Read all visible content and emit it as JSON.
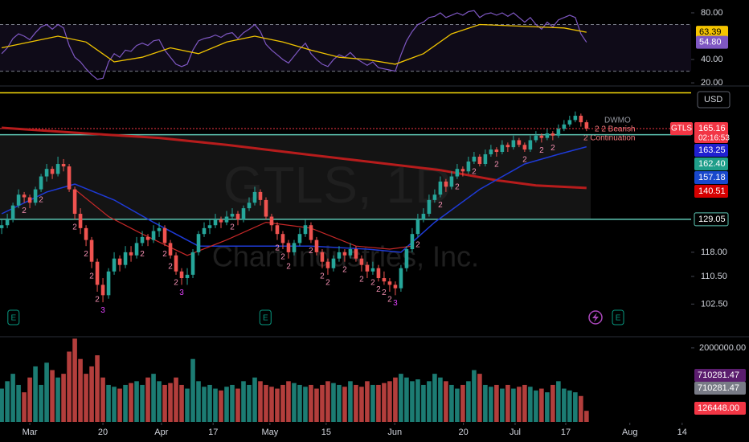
{
  "chart_data": {
    "type": "candlestick",
    "symbol_watermark": "GTLS, 1D",
    "company_watermark": "Chart Industries, Inc.",
    "currency": "USD",
    "symbol_tag": "GTLS",
    "countdown": "02:16:53",
    "annotations": [
      "DWMO",
      "2 2 Bearish",
      "2 Continuation"
    ],
    "up_color": "#26a69a",
    "down_color": "#ef5350",
    "xlim": [
      -5.3,
      117.6
    ],
    "xticks": [
      {
        "value": 0,
        "label": "Mar"
      },
      {
        "value": 13,
        "label": "20"
      },
      {
        "value": 23.4,
        "label": "Apr"
      },
      {
        "value": 32.6,
        "label": "17"
      },
      {
        "value": 42.7,
        "label": "May"
      },
      {
        "value": 52.7,
        "label": "15"
      },
      {
        "value": 64.9,
        "label": "Jun"
      },
      {
        "value": 77.1,
        "label": "20"
      },
      {
        "value": 86.3,
        "label": "Jul"
      },
      {
        "value": 95.3,
        "label": "17"
      },
      {
        "value": 106.7,
        "label": "Aug"
      },
      {
        "value": 116,
        "label": "14"
      }
    ],
    "x": [
      -5,
      -4,
      -3,
      -2,
      -1,
      0,
      1,
      2,
      3,
      4,
      5,
      6,
      7,
      8,
      9,
      10,
      11,
      12,
      13,
      14,
      15,
      16,
      17,
      18,
      19,
      20,
      21,
      22,
      23,
      24,
      25,
      26,
      27,
      28,
      29,
      30,
      31,
      32,
      33,
      34,
      35,
      36,
      37,
      38,
      39,
      40,
      41,
      42,
      43,
      44,
      45,
      46,
      47,
      48,
      49,
      50,
      51,
      52,
      53,
      54,
      55,
      56,
      57,
      58,
      59,
      60,
      61,
      62,
      63,
      64,
      65,
      66,
      67,
      68,
      69,
      70,
      71,
      72,
      73,
      74,
      75,
      76,
      77,
      78,
      79,
      80,
      81,
      82,
      83,
      84,
      85,
      86,
      87,
      88,
      89,
      90,
      91,
      92,
      93,
      94,
      95,
      96,
      97,
      98,
      99
    ],
    "candles": [
      [
        126,
        129,
        124,
        127
      ],
      [
        127,
        131,
        126,
        129
      ],
      [
        129,
        135,
        128,
        134
      ],
      [
        134,
        140,
        133,
        138
      ],
      [
        138,
        139,
        135,
        137
      ],
      [
        137,
        138,
        133,
        135
      ],
      [
        135,
        141,
        134,
        140
      ],
      [
        140,
        146,
        139,
        145
      ],
      [
        145,
        150,
        143,
        148
      ],
      [
        148,
        149,
        144,
        146
      ],
      [
        146,
        153,
        145,
        150
      ],
      [
        150,
        152,
        147,
        149
      ],
      [
        149,
        150,
        139,
        140
      ],
      [
        140,
        141,
        129,
        131
      ],
      [
        131,
        133,
        124,
        126
      ],
      [
        126,
        127,
        120,
        122
      ],
      [
        122,
        123,
        113,
        115
      ],
      [
        115,
        116,
        106,
        108
      ],
      [
        108,
        110,
        103,
        105
      ],
      [
        105,
        113,
        104,
        112
      ],
      [
        112,
        118,
        111,
        116
      ],
      [
        116,
        117,
        112,
        114
      ],
      [
        114,
        120,
        113,
        118
      ],
      [
        118,
        120,
        115,
        117
      ],
      [
        117,
        123,
        116,
        121
      ],
      [
        121,
        125,
        120,
        123
      ],
      [
        123,
        124,
        120,
        122
      ],
      [
        122,
        127,
        121,
        125
      ],
      [
        125,
        128,
        123,
        126
      ],
      [
        126,
        127,
        120,
        121
      ],
      [
        121,
        122,
        116,
        117
      ],
      [
        117,
        118,
        111,
        112
      ],
      [
        112,
        113,
        108,
        110
      ],
      [
        110,
        113,
        108,
        111
      ],
      [
        111,
        119,
        110,
        118
      ],
      [
        118,
        125,
        117,
        124
      ],
      [
        124,
        128,
        123,
        126
      ],
      [
        126,
        129,
        124,
        127
      ],
      [
        127,
        131,
        126,
        129
      ],
      [
        129,
        130,
        126,
        128
      ],
      [
        128,
        132,
        127,
        130
      ],
      [
        130,
        133,
        129,
        131
      ],
      [
        131,
        132,
        127,
        129
      ],
      [
        129,
        134,
        128,
        133
      ],
      [
        133,
        137,
        132,
        135
      ],
      [
        135,
        141,
        134,
        139
      ],
      [
        139,
        140,
        134,
        136
      ],
      [
        136,
        137,
        129,
        130
      ],
      [
        130,
        131,
        125,
        127
      ],
      [
        127,
        128,
        122,
        124
      ],
      [
        124,
        125,
        119,
        121
      ],
      [
        121,
        122,
        116,
        118
      ],
      [
        118,
        122,
        117,
        121
      ],
      [
        121,
        126,
        120,
        124
      ],
      [
        124,
        129,
        123,
        127
      ],
      [
        127,
        128,
        121,
        122
      ],
      [
        122,
        123,
        117,
        118
      ],
      [
        118,
        119,
        113,
        115
      ],
      [
        115,
        116,
        111,
        113
      ],
      [
        113,
        117,
        112,
        116
      ],
      [
        116,
        120,
        115,
        118
      ],
      [
        118,
        119,
        115,
        117
      ],
      [
        117,
        121,
        116,
        119
      ],
      [
        119,
        120,
        115,
        116
      ],
      [
        116,
        117,
        112,
        114
      ],
      [
        114,
        115,
        110,
        112
      ],
      [
        112,
        115,
        111,
        113
      ],
      [
        113,
        114,
        109,
        110
      ],
      [
        110,
        112,
        108,
        109
      ],
      [
        109,
        110,
        106,
        108
      ],
      [
        108,
        109,
        105,
        107
      ],
      [
        107,
        114,
        106,
        113
      ],
      [
        113,
        120,
        112,
        119
      ],
      [
        119,
        126,
        118,
        124
      ],
      [
        124,
        131,
        123,
        129
      ],
      [
        129,
        133,
        128,
        131
      ],
      [
        131,
        138,
        130,
        136
      ],
      [
        136,
        140,
        135,
        138
      ],
      [
        138,
        145,
        137,
        143
      ],
      [
        143,
        144,
        139,
        141
      ],
      [
        141,
        147,
        140,
        145
      ],
      [
        145,
        150,
        144,
        148
      ],
      [
        148,
        149,
        145,
        147
      ],
      [
        147,
        153,
        146,
        151
      ],
      [
        151,
        155,
        150,
        153
      ],
      [
        153,
        154,
        149,
        150
      ],
      [
        150,
        156,
        149,
        154
      ],
      [
        154,
        158,
        153,
        156
      ],
      [
        156,
        157,
        153,
        155
      ],
      [
        155,
        160,
        154,
        158
      ],
      [
        158,
        159,
        155,
        157
      ],
      [
        157,
        162,
        156,
        160
      ],
      [
        160,
        161,
        157,
        158
      ],
      [
        158,
        159,
        155,
        156
      ],
      [
        156,
        162,
        155,
        160
      ],
      [
        160,
        164,
        159,
        162
      ],
      [
        162,
        163,
        159,
        161
      ],
      [
        161,
        165,
        160,
        163
      ],
      [
        163,
        164,
        160,
        162
      ],
      [
        162,
        167,
        161,
        165
      ],
      [
        165,
        169,
        164,
        167
      ],
      [
        167,
        171,
        166,
        169
      ],
      [
        169,
        173,
        168,
        171
      ],
      [
        171,
        172,
        166,
        168
      ],
      [
        168,
        169,
        164,
        165.16
      ]
    ],
    "volume": [
      900000,
      1100000,
      1300000,
      1000000,
      800000,
      1200000,
      1500000,
      1000000,
      1600000,
      1400000,
      1200000,
      1300000,
      1900000,
      2250000,
      1700000,
      1300000,
      1500000,
      1800000,
      1200000,
      1000000,
      950000,
      900000,
      1000000,
      1050000,
      1100000,
      1000000,
      1200000,
      1300000,
      1100000,
      1000000,
      1050000,
      1200000,
      1000000,
      900000,
      1700000,
      1100000,
      950000,
      1000000,
      900000,
      850000,
      950000,
      1000000,
      900000,
      1100000,
      1000000,
      1200000,
      1100000,
      1000000,
      950000,
      900000,
      1000000,
      1100000,
      1050000,
      1000000,
      950000,
      1000000,
      900000,
      1000000,
      1100000,
      1050000,
      1000000,
      950000,
      1100000,
      1000000,
      950000,
      1100000,
      1000000,
      1000000,
      1050000,
      1100000,
      1200000,
      1300000,
      1200000,
      1100000,
      1150000,
      1000000,
      1100000,
      1300000,
      1200000,
      1100000,
      1000000,
      900000,
      1000000,
      1100000,
      1400000,
      1300000,
      1000000,
      950000,
      1000000,
      900000,
      1000000,
      900000,
      950000,
      1000000,
      950000,
      850000,
      900000,
      800000,
      1000000,
      1100000,
      900000,
      850000,
      800000,
      700000,
      300000
    ],
    "log_scale": true,
    "ylim": [
      94,
      185
    ],
    "yticks": [
      {
        "value": 102.5,
        "label": "102.50"
      },
      {
        "value": 110.5,
        "label": "110.50"
      },
      {
        "value": 118,
        "label": "118.00"
      }
    ],
    "hlines": [
      {
        "value": 182,
        "color": "#f5d90a",
        "style": "solid"
      },
      {
        "value": 165.16,
        "color": "#f23645",
        "style": "dotted"
      },
      {
        "value": 162.4,
        "color": "#5ec7b5",
        "style": "solid"
      },
      {
        "value": 129.05,
        "color": "#5ec7b5",
        "style": "solid"
      }
    ],
    "price_labels": [
      {
        "value": 165.16,
        "label": "165.16",
        "color": "#f23645"
      },
      {
        "value": 163.25,
        "label": "163.25",
        "color": "#2020d0"
      },
      {
        "value": 162.4,
        "label": "162.40",
        "color": "#1f9e8a"
      },
      {
        "value": 157.18,
        "label": "157.18",
        "color": "#1848cc"
      },
      {
        "value": 140.51,
        "label": "140.51",
        "color": "#d50000"
      },
      {
        "value": 129.05,
        "label": "129.05",
        "color": "#5ec7b5",
        "outline": true
      }
    ],
    "moving_averages": [
      {
        "color": "#b71c1c",
        "x": [
          -5,
          10,
          23,
          35,
          49,
          60,
          73,
          83,
          90,
          99
        ],
        "values": [
          165.5,
          163,
          161,
          158,
          154,
          151,
          147.5,
          143.5,
          141.5,
          140.51
        ]
      },
      {
        "color": "#1e3ad6",
        "x": [
          -5,
          3,
          8,
          15,
          22,
          30,
          40,
          50,
          60,
          66,
          72,
          80,
          88,
          94,
          99
        ],
        "values": [
          131,
          139,
          142,
          136,
          128,
          120,
          120,
          120,
          119,
          118,
          128,
          140,
          150,
          154,
          157.18
        ]
      },
      {
        "color": "#c62828",
        "x": [
          8,
          14,
          20,
          28,
          35,
          42,
          50,
          58,
          64,
          68
        ],
        "values": [
          140,
          130,
          124,
          117,
          122,
          128,
          126,
          120,
          119,
          120
        ]
      }
    ],
    "td_counts": [
      {
        "x": -1,
        "label": "2"
      },
      {
        "x": 2,
        "label": "2"
      },
      {
        "x": 8,
        "label": "2"
      },
      {
        "x": 10,
        "label": "2"
      },
      {
        "x": 11,
        "label": "2"
      },
      {
        "x": 12,
        "label": "2"
      },
      {
        "x": 13,
        "label": "3"
      },
      {
        "x": 20,
        "label": "2"
      },
      {
        "x": 24,
        "label": "2"
      },
      {
        "x": 25,
        "label": "2"
      },
      {
        "x": 26,
        "label": "2"
      },
      {
        "x": 27,
        "label": "3"
      },
      {
        "x": 36,
        "label": "2"
      },
      {
        "x": 44,
        "label": "2"
      },
      {
        "x": 45,
        "label": "2"
      },
      {
        "x": 46,
        "label": "2"
      },
      {
        "x": 50,
        "label": "2"
      },
      {
        "x": 52,
        "label": "2"
      },
      {
        "x": 53,
        "label": "2"
      },
      {
        "x": 56,
        "label": "2"
      },
      {
        "x": 59,
        "label": "2"
      },
      {
        "x": 61,
        "label": "2"
      },
      {
        "x": 62,
        "label": "2"
      },
      {
        "x": 63,
        "label": "2"
      },
      {
        "x": 64,
        "label": "2"
      },
      {
        "x": 65,
        "label": "3"
      },
      {
        "x": 69,
        "label": "2"
      },
      {
        "x": 73,
        "label": "2"
      },
      {
        "x": 76,
        "label": "2"
      },
      {
        "x": 79,
        "label": "2"
      },
      {
        "x": 83,
        "label": "2"
      },
      {
        "x": 88,
        "label": "2"
      },
      {
        "x": 91,
        "label": "2"
      },
      {
        "x": 93,
        "label": "2"
      }
    ],
    "event_icons": [
      {
        "x": -2.9,
        "label": "E"
      },
      {
        "x": 41.9,
        "label": "E"
      },
      {
        "x": 104.6,
        "label": "E"
      }
    ],
    "rsi": {
      "ylim": [
        18,
        91
      ],
      "yticks": [
        {
          "value": 80,
          "label": "80.00"
        },
        {
          "value": 40,
          "label": "40.00"
        },
        {
          "value": 20,
          "label": "20.00"
        }
      ],
      "bands": [
        30,
        70
      ],
      "color": "#7e57c2",
      "values": [
        45,
        50,
        58,
        62,
        60,
        57,
        63,
        68,
        70,
        66,
        70,
        67,
        52,
        42,
        38,
        32,
        27,
        23,
        24,
        38,
        45,
        42,
        48,
        47,
        52,
        54,
        52,
        56,
        57,
        48,
        42,
        36,
        34,
        36,
        48,
        56,
        58,
        59,
        61,
        59,
        62,
        63,
        58,
        63,
        66,
        70,
        64,
        53,
        48,
        44,
        40,
        37,
        43,
        49,
        54,
        45,
        40,
        36,
        34,
        40,
        44,
        42,
        46,
        41,
        38,
        35,
        38,
        33,
        32,
        31,
        30,
        44,
        56,
        64,
        70,
        72,
        76,
        77,
        80,
        76,
        78,
        80,
        78,
        81,
        82,
        76,
        79,
        80,
        78,
        80,
        77,
        80,
        76,
        72,
        76,
        70,
        66,
        72,
        68,
        74,
        76,
        78,
        76,
        62,
        54.8
      ],
      "ma": {
        "color": "#f0c400",
        "x": [
          -5,
          0,
          5,
          10,
          15,
          20,
          25,
          30,
          35,
          40,
          45,
          50,
          55,
          60,
          65,
          70,
          75,
          80,
          85,
          90,
          95,
          99
        ],
        "values": [
          50,
          55,
          60,
          55,
          38,
          42,
          50,
          45,
          55,
          60,
          55,
          48,
          42,
          40,
          36,
          45,
          62,
          70,
          69,
          68,
          67,
          63.39
        ]
      },
      "labels": [
        {
          "value": 63.39,
          "label": "63.39",
          "color": "#f5c400"
        },
        {
          "value": 54.8,
          "label": "54.80",
          "color": "#7e57c2"
        }
      ]
    },
    "volume_pane": {
      "ylim": [
        0,
        2280000
      ],
      "yticks": [
        {
          "value": 2000000,
          "label": "2000000.00"
        }
      ],
      "labels": [
        {
          "label": "710281.47",
          "color": "#5b1d6e"
        },
        {
          "label": "710281.47",
          "color": "#787b86"
        },
        {
          "label": "126448.00",
          "color": "#f23645"
        }
      ]
    }
  }
}
